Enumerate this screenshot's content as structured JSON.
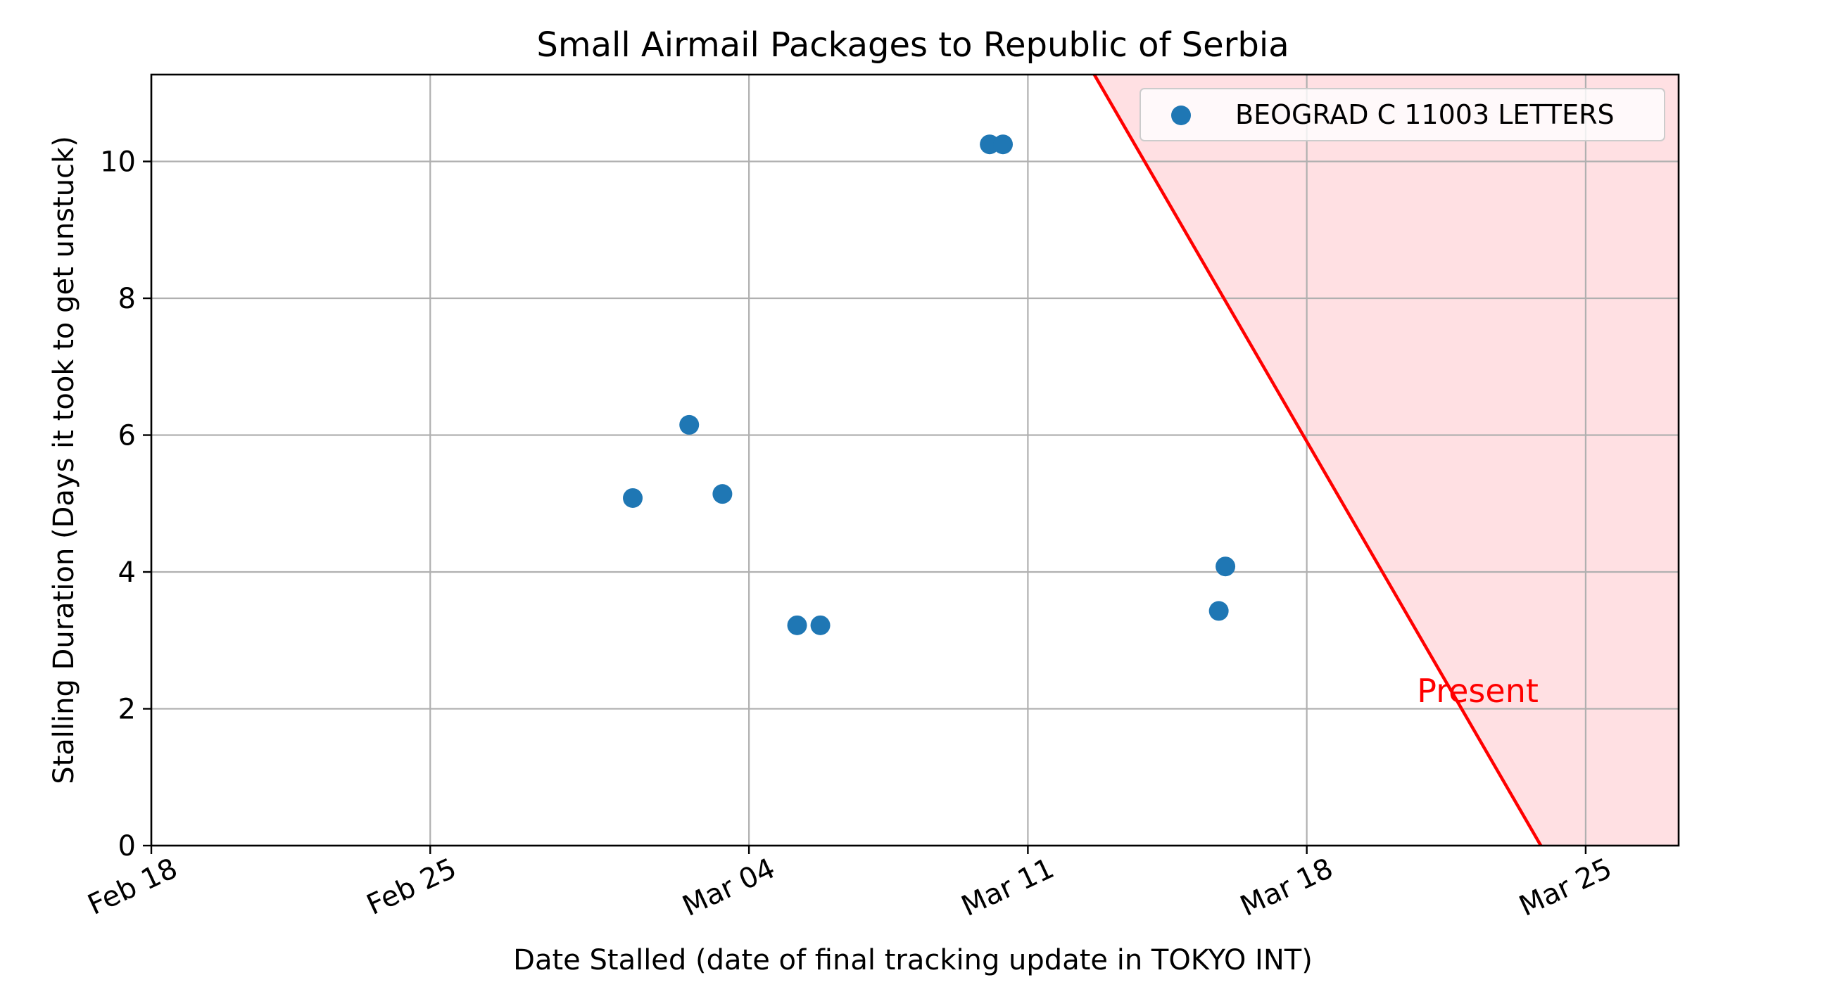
{
  "chart_data": {
    "type": "scatter",
    "title": "Small Airmail Packages to Republic of Serbia",
    "xlabel": "Date Stalled (date of final tracking update in TOKYO INT)",
    "ylabel": "Stalling Duration (Days it took to get unstuck)",
    "x_axis": {
      "type": "date",
      "range": [
        "2024-02-18",
        "2024-03-27T08:00"
      ],
      "tick_values": [
        "2024-02-18",
        "2024-02-25",
        "2024-03-04",
        "2024-03-11",
        "2024-03-18",
        "2024-03-25"
      ],
      "tick_labels": [
        "Feb 18",
        "Feb 25",
        "Mar 04",
        "Mar 11",
        "Mar 18",
        "Mar 25"
      ],
      "tick_rotation": "tilted"
    },
    "y_axis": {
      "range": [
        0,
        11.27
      ],
      "tick_values": [
        0,
        2,
        4,
        6,
        8,
        10
      ],
      "tick_labels": [
        "0",
        "2",
        "4",
        "6",
        "8",
        "10"
      ]
    },
    "grid": true,
    "legend_position": "top-right",
    "series": [
      {
        "name": "BEOGRAD C 11003 LETTERS",
        "color": "#1f77b4",
        "marker": "circle",
        "points": [
          {
            "x": "2024-03-01T02:00",
            "y": 5.08
          },
          {
            "x": "2024-03-02T12:00",
            "y": 6.15
          },
          {
            "x": "2024-03-03T08:00",
            "y": 5.14
          },
          {
            "x": "2024-03-05T05:00",
            "y": 3.22
          },
          {
            "x": "2024-03-05T19:00",
            "y": 3.22
          },
          {
            "x": "2024-03-10T01:00",
            "y": 10.25
          },
          {
            "x": "2024-03-10T09:00",
            "y": 10.25
          },
          {
            "x": "2024-03-15T19:00",
            "y": 3.43
          },
          {
            "x": "2024-03-15T23:00",
            "y": 4.08
          }
        ]
      }
    ],
    "present_line": {
      "label": "Present",
      "color": "#ff0000",
      "fill_color": "#ffe0e3",
      "line": [
        {
          "x": "2024-03-12T16:00",
          "y": 11.27
        },
        {
          "x": "2024-03-23T21:00",
          "y": 0
        }
      ]
    }
  }
}
